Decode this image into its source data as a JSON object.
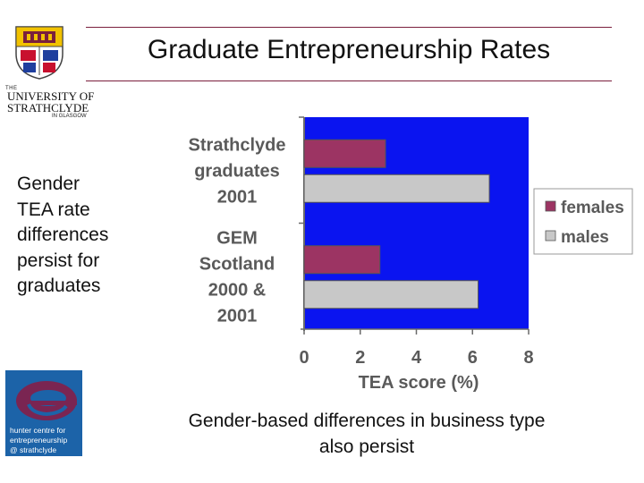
{
  "slide": {
    "title": "Graduate Entrepreneurship Rates",
    "left_text_lines": [
      "Gender",
      "TEA rate",
      "differences",
      "persist for",
      "graduates"
    ],
    "bottom_text_lines": [
      "Gender-based differences in business type",
      "also persist"
    ]
  },
  "logos": {
    "university": {
      "the": "THE",
      "line1": "UNIVERSITY OF",
      "line2": "STRATHCLYDE",
      "line3": "IN GLASGOW"
    },
    "hunter": {
      "lines": [
        "hunter centre for",
        "entrepreneurship",
        "@ strathclyde"
      ]
    }
  },
  "colors": {
    "plot_bg": "#0a14f0",
    "females": "#9c3463",
    "males": "#c8c8c8",
    "accent_rule": "#7a1f3d",
    "hunter_bg": "#1c63a8",
    "hunter_e": "#7a2552"
  },
  "chart_data": {
    "type": "bar",
    "orientation": "horizontal",
    "categories": [
      [
        "Strathclyde",
        "graduates",
        "2001"
      ],
      [
        "GEM",
        "Scotland",
        "2000 &",
        "2001"
      ]
    ],
    "series": [
      {
        "name": "females",
        "values": [
          2.9,
          2.7
        ]
      },
      {
        "name": "males",
        "values": [
          6.6,
          6.2
        ]
      }
    ],
    "xlabel": "TEA score  (%)",
    "xlim": [
      0,
      8
    ],
    "xticks": [
      "0",
      "2",
      "4",
      "6",
      "8"
    ],
    "legend_position": "right",
    "grid": false
  }
}
